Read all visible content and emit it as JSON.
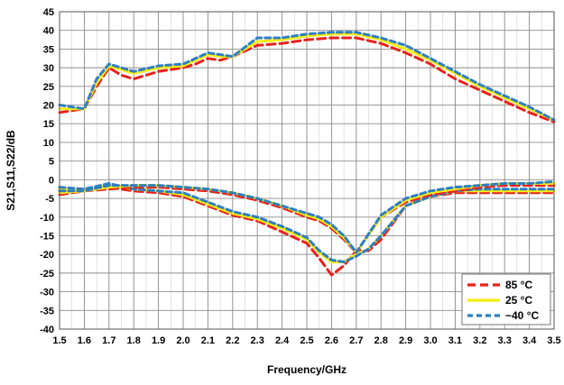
{
  "chart_data": {
    "type": "line",
    "title": "",
    "xlabel": "Frequency/GHz",
    "ylabel": "S21,S11,S22/dB",
    "xlim": [
      1.5,
      3.5
    ],
    "ylim": [
      -40,
      45
    ],
    "xticks": [
      "1.5",
      "1.6",
      "1.7",
      "1.8",
      "1.9",
      "2.0",
      "2.1",
      "2.2",
      "2.3",
      "2.4",
      "2.5",
      "2.6",
      "2.7",
      "2.8",
      "2.9",
      "3.0",
      "3.1",
      "3.2",
      "3.3",
      "3.4",
      "3.5"
    ],
    "yticks": [
      "45",
      "40",
      "35",
      "30",
      "25",
      "20",
      "15",
      "10",
      "5",
      "0",
      "-5",
      "-10",
      "-15",
      "-20",
      "-25",
      "-30",
      "-35",
      "-40"
    ],
    "grid": true,
    "legend_position": "bottom-right",
    "legend": [
      {
        "label": "85 °C",
        "color": "#e8211d",
        "dash": "9,5"
      },
      {
        "label": "25 °C",
        "color": "#f5ee14",
        "dash": ""
      },
      {
        "label": "−40 °C",
        "color": "#2f7fc1",
        "dash": "6,4"
      }
    ],
    "series": [
      {
        "name": "85 °C",
        "trace": "S21",
        "color": "#e8211d",
        "dash": "9,5",
        "x": [
          1.5,
          1.55,
          1.6,
          1.65,
          1.7,
          1.75,
          1.8,
          1.9,
          2.0,
          2.05,
          2.1,
          2.15,
          2.2,
          2.25,
          2.3,
          2.4,
          2.5,
          2.6,
          2.7,
          2.8,
          2.9,
          3.0,
          3.1,
          3.2,
          3.3,
          3.4,
          3.5
        ],
        "y": [
          18,
          18.5,
          19,
          25,
          30,
          28,
          27,
          29,
          30,
          31,
          32.5,
          32,
          33,
          34.5,
          36,
          36.5,
          37.5,
          38,
          38,
          36.5,
          34,
          31,
          27,
          24,
          21,
          18,
          15.5
        ]
      },
      {
        "name": "25 °C",
        "trace": "S21",
        "color": "#f5ee14",
        "dash": "",
        "x": [
          1.5,
          1.55,
          1.6,
          1.65,
          1.7,
          1.75,
          1.8,
          1.9,
          2.0,
          2.05,
          2.1,
          2.15,
          2.2,
          2.25,
          2.3,
          2.4,
          2.5,
          2.6,
          2.7,
          2.8,
          2.9,
          3.0,
          3.1,
          3.2,
          3.3,
          3.4,
          3.5
        ],
        "y": [
          19,
          19,
          19,
          26,
          30.5,
          29.5,
          28.5,
          30,
          30.5,
          32,
          33.5,
          33,
          33,
          35,
          37,
          37.5,
          38.5,
          39,
          39,
          37.5,
          35,
          32,
          28.5,
          25,
          22,
          19,
          16
        ]
      },
      {
        "name": "−40 °C",
        "trace": "S21",
        "color": "#2f7fc1",
        "dash": "6,4",
        "x": [
          1.5,
          1.55,
          1.6,
          1.65,
          1.7,
          1.75,
          1.8,
          1.9,
          2.0,
          2.05,
          2.1,
          2.15,
          2.2,
          2.25,
          2.3,
          2.4,
          2.5,
          2.6,
          2.7,
          2.8,
          2.9,
          3.0,
          3.1,
          3.2,
          3.3,
          3.4,
          3.5
        ],
        "y": [
          20,
          19.5,
          19,
          27,
          31,
          30,
          29,
          30.5,
          31,
          32.5,
          34,
          33.5,
          33,
          35.5,
          38,
          38,
          39,
          39.5,
          39.5,
          38,
          36,
          32.5,
          29,
          25.5,
          22.5,
          19.5,
          16
        ]
      },
      {
        "name": "85 °C",
        "trace": "S11",
        "color": "#e8211d",
        "dash": "9,5",
        "x": [
          1.5,
          1.6,
          1.7,
          1.8,
          1.9,
          2.0,
          2.1,
          2.2,
          2.3,
          2.4,
          2.5,
          2.55,
          2.6,
          2.65,
          2.7,
          2.75,
          2.8,
          2.9,
          3.0,
          3.1,
          3.2,
          3.3,
          3.4,
          3.5
        ],
        "y": [
          -2.5,
          -3,
          -2,
          -3,
          -3.5,
          -4.5,
          -7,
          -9.5,
          -11,
          -14,
          -17,
          -21,
          -25.5,
          -23,
          -19,
          -19,
          -16,
          -7,
          -4.5,
          -3.5,
          -3.5,
          -3.5,
          -3.5,
          -3.5
        ]
      },
      {
        "name": "25 °C",
        "trace": "S11",
        "color": "#f5ee14",
        "dash": "",
        "x": [
          1.5,
          1.6,
          1.7,
          1.8,
          1.9,
          2.0,
          2.1,
          2.2,
          2.3,
          2.4,
          2.5,
          2.55,
          2.6,
          2.65,
          2.7,
          2.75,
          2.8,
          2.9,
          3.0,
          3.1,
          3.2,
          3.3,
          3.4,
          3.5
        ],
        "y": [
          -2.5,
          -3,
          -1.5,
          -2.5,
          -3,
          -4,
          -6.5,
          -9,
          -10.5,
          -13,
          -16,
          -19.5,
          -22,
          -22,
          -20,
          -18.5,
          -15,
          -7,
          -4.5,
          -3,
          -3,
          -3,
          -3,
          -3
        ]
      },
      {
        "name": "−40 °C",
        "trace": "S11",
        "color": "#2f7fc1",
        "dash": "6,4",
        "x": [
          1.5,
          1.6,
          1.7,
          1.8,
          1.9,
          2.0,
          2.1,
          2.2,
          2.3,
          2.4,
          2.5,
          2.55,
          2.6,
          2.65,
          2.7,
          2.75,
          2.8,
          2.9,
          3.0,
          3.1,
          3.2,
          3.3,
          3.4,
          3.5
        ],
        "y": [
          -2,
          -2.5,
          -1,
          -2.5,
          -3,
          -3.5,
          -6,
          -8.5,
          -10,
          -12.5,
          -15.5,
          -19,
          -21.5,
          -22,
          -20.5,
          -18.5,
          -15,
          -7,
          -4.5,
          -3,
          -2.5,
          -2.5,
          -2.5,
          -2.5
        ]
      },
      {
        "name": "85 °C",
        "trace": "S22",
        "color": "#e8211d",
        "dash": "9,5",
        "x": [
          1.5,
          1.6,
          1.7,
          1.8,
          1.9,
          2.0,
          2.1,
          2.2,
          2.3,
          2.4,
          2.5,
          2.55,
          2.6,
          2.65,
          2.7,
          2.8,
          2.9,
          3.0,
          3.1,
          3.2,
          3.3,
          3.4,
          3.5
        ],
        "y": [
          -4,
          -3,
          -2.5,
          -2,
          -2,
          -2.5,
          -3,
          -4,
          -5.5,
          -7.5,
          -10,
          -11,
          -13,
          -16,
          -19.5,
          -10,
          -6,
          -4,
          -3,
          -2,
          -1.5,
          -1.5,
          -1.5
        ]
      },
      {
        "name": "25 °C",
        "trace": "S22",
        "color": "#f5ee14",
        "dash": "",
        "x": [
          1.5,
          1.6,
          1.7,
          1.8,
          1.9,
          2.0,
          2.1,
          2.2,
          2.3,
          2.4,
          2.5,
          2.55,
          2.6,
          2.65,
          2.7,
          2.8,
          2.9,
          3.0,
          3.1,
          3.2,
          3.3,
          3.4,
          3.5
        ],
        "y": [
          -3.5,
          -3,
          -2,
          -1.5,
          -1.5,
          -2,
          -2.5,
          -3.5,
          -5,
          -7,
          -9.5,
          -10.5,
          -12.5,
          -15.5,
          -19.5,
          -10,
          -5.5,
          -3.5,
          -2.5,
          -1.5,
          -1,
          -1,
          -1
        ]
      },
      {
        "name": "−40 °C",
        "trace": "S22",
        "color": "#2f7fc1",
        "dash": "6,4",
        "x": [
          1.5,
          1.6,
          1.7,
          1.8,
          1.9,
          2.0,
          2.1,
          2.2,
          2.3,
          2.4,
          2.5,
          2.55,
          2.6,
          2.65,
          2.7,
          2.8,
          2.9,
          3.0,
          3.1,
          3.2,
          3.3,
          3.4,
          3.5
        ],
        "y": [
          -3,
          -3,
          -1.5,
          -1.5,
          -1.5,
          -2,
          -2.5,
          -3.5,
          -5,
          -7,
          -9,
          -10,
          -12,
          -15,
          -19.5,
          -9.5,
          -5,
          -3,
          -2,
          -1.5,
          -1,
          -1,
          -0.5
        ]
      }
    ]
  }
}
